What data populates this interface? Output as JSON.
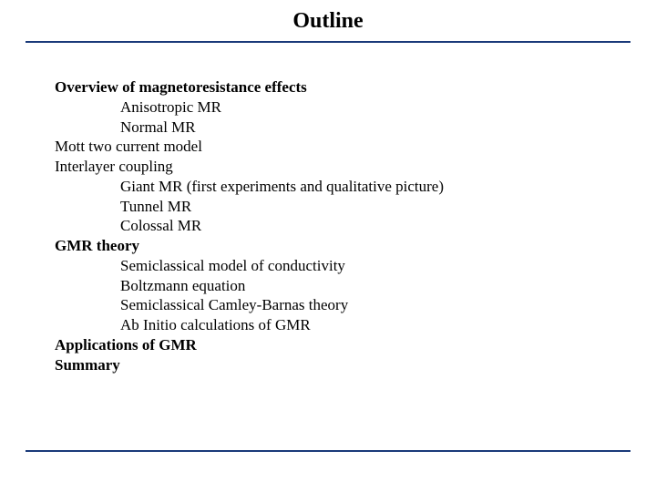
{
  "title": "Outline",
  "divider_color": "#1a3a7a",
  "font_family": "Times New Roman",
  "title_fontsize": 24,
  "body_fontsize": 17,
  "lines": {
    "l0": "Overview of magnetoresistance effects",
    "l1": "Anisotropic MR",
    "l2": "Normal MR",
    "l3": "Mott two current model",
    "l4": "Interlayer coupling",
    "l5": "Giant MR (first experiments and qualitative picture)",
    "l6": "Tunnel MR",
    "l7": "Colossal MR",
    "l8": "GMR theory",
    "l9": "Semiclassical model of conductivity",
    "l10": "Boltzmann equation",
    "l11": "Semiclassical Camley-Barnas theory",
    "l12": "Ab Initio calculations of GMR",
    "l13": "Applications of GMR",
    "l14": "Summary"
  }
}
